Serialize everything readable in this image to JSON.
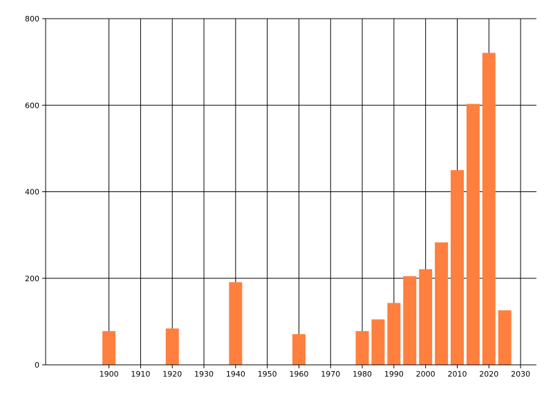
{
  "chart_data": {
    "type": "bar",
    "title": "",
    "xlabel": "",
    "ylabel": "",
    "xlim": [
      1880,
      2035
    ],
    "ylim": [
      0,
      800
    ],
    "x_ticks": [
      1900,
      1910,
      1920,
      1930,
      1940,
      1950,
      1960,
      1970,
      1980,
      1990,
      2000,
      2010,
      2020,
      2030
    ],
    "y_ticks": [
      0,
      200,
      400,
      600,
      800
    ],
    "grid": true,
    "bar_color": "#ff7f3f",
    "points": [
      {
        "x": 1900,
        "y": 78
      },
      {
        "x": 1920,
        "y": 84
      },
      {
        "x": 1940,
        "y": 191
      },
      {
        "x": 1960,
        "y": 71
      },
      {
        "x": 1980,
        "y": 78
      },
      {
        "x": 1985,
        "y": 105
      },
      {
        "x": 1990,
        "y": 143
      },
      {
        "x": 1995,
        "y": 205
      },
      {
        "x": 2000,
        "y": 221
      },
      {
        "x": 2005,
        "y": 283
      },
      {
        "x": 2010,
        "y": 450
      },
      {
        "x": 2015,
        "y": 603
      },
      {
        "x": 2020,
        "y": 721
      },
      {
        "x": 2025,
        "y": 126
      }
    ]
  }
}
